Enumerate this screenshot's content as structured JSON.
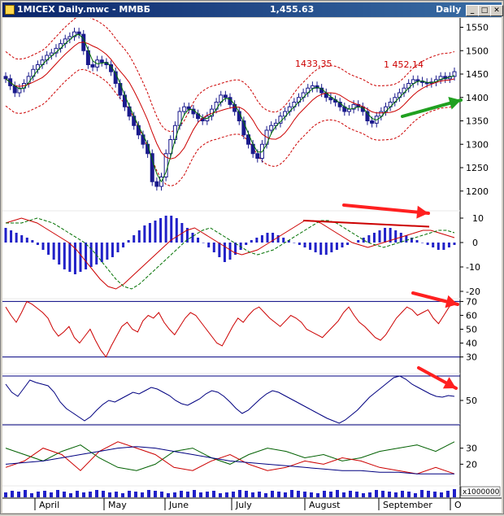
{
  "window": {
    "title": "1MICEX Daily.mwc - ММВБ",
    "last_price": "1,455.63",
    "period": "Daily",
    "controls": {
      "minimize": "_",
      "maximize": "□",
      "close": "✕"
    },
    "icon": "chart-app-icon"
  },
  "colors": {
    "candle": "#1a1a8c",
    "ma": "#cc0000",
    "ma_fast": "#007000",
    "band": "#cc0000",
    "histogram": "#2020c8",
    "rsi": "#cc0000",
    "stoch": "#000080",
    "adx": "#000080",
    "di_plus": "#006000",
    "di_minus": "#cc0000",
    "volume": "#2020c8",
    "arrow_red": "#ff2020",
    "arrow_green": "#20a020"
  },
  "chart_data": {
    "x_labels": [
      "April",
      "May",
      "June",
      "July",
      "August",
      "September",
      "O"
    ],
    "price_panel": {
      "type": "candlestick",
      "yticks": [
        "1550",
        "1500",
        "1450",
        "1400",
        "1350",
        "1300",
        "1250",
        "1200"
      ],
      "ylim": [
        1170,
        1570
      ],
      "annotations": [
        "1433,35",
        "1 452,14"
      ],
      "last_close": 1455.63,
      "close": [
        1440,
        1425,
        1410,
        1420,
        1430,
        1445,
        1460,
        1470,
        1480,
        1490,
        1495,
        1505,
        1515,
        1525,
        1530,
        1540,
        1535,
        1500,
        1470,
        1465,
        1480,
        1475,
        1470,
        1455,
        1430,
        1405,
        1380,
        1360,
        1340,
        1320,
        1300,
        1280,
        1220,
        1210,
        1230,
        1280,
        1310,
        1340,
        1370,
        1380,
        1375,
        1365,
        1355,
        1350,
        1360,
        1375,
        1390,
        1405,
        1400,
        1385,
        1370,
        1350,
        1320,
        1300,
        1280,
        1270,
        1300,
        1330,
        1340,
        1345,
        1360,
        1370,
        1380,
        1390,
        1400,
        1410,
        1420,
        1425,
        1420,
        1410,
        1400,
        1395,
        1390,
        1380,
        1370,
        1375,
        1385,
        1380,
        1370,
        1350,
        1345,
        1360,
        1370,
        1380,
        1390,
        1400,
        1410,
        1420,
        1430,
        1438,
        1435,
        1432,
        1430,
        1433,
        1438,
        1445,
        1440,
        1445,
        1455
      ]
    },
    "macd_panel": {
      "yticks": [
        "10",
        "0",
        "-10",
        "-20"
      ],
      "ylim": [
        -23,
        13
      ],
      "histogram": [
        6,
        5,
        4,
        3,
        2,
        1,
        -1,
        -3,
        -5,
        -7,
        -9,
        -11,
        -12,
        -13,
        -12,
        -11,
        -10,
        -9,
        -8,
        -7,
        -6,
        -4,
        -2,
        1,
        3,
        5,
        7,
        8,
        9,
        10,
        11,
        11,
        10,
        8,
        6,
        4,
        2,
        0,
        -2,
        -4,
        -6,
        -8,
        -7,
        -5,
        -3,
        -1,
        1,
        2,
        3,
        4,
        4,
        3,
        2,
        1,
        0,
        -1,
        -2,
        -3,
        -4,
        -5,
        -5,
        -4,
        -3,
        -2,
        -1,
        0,
        1,
        2,
        3,
        4,
        5,
        6,
        6,
        5,
        4,
        3,
        2,
        1,
        0,
        -1,
        -2,
        -3,
        -3,
        -2,
        -1
      ],
      "signal": [
        8,
        9,
        10,
        9,
        8,
        6,
        4,
        2,
        0,
        -3,
        -7,
        -11,
        -15,
        -18,
        -19,
        -17,
        -14,
        -11,
        -8,
        -5,
        -2,
        1,
        3,
        5,
        6,
        4,
        2,
        0,
        -2,
        -4,
        -5,
        -4,
        -3,
        -1,
        1,
        3,
        5,
        7,
        9,
        9,
        8,
        6,
        4,
        2,
        0,
        -1,
        -2,
        -1,
        0,
        1,
        2,
        3,
        4,
        5,
        5,
        4,
        3,
        2
      ]
    },
    "rsi_panel": {
      "yticks": [
        "70",
        "60",
        "50",
        "40",
        "30"
      ],
      "ylim": [
        28,
        72
      ],
      "levels": [
        70,
        30
      ],
      "values": [
        66,
        60,
        55,
        62,
        70,
        68,
        65,
        62,
        58,
        50,
        45,
        48,
        52,
        44,
        40,
        45,
        50,
        42,
        35,
        30,
        38,
        45,
        52,
        55,
        50,
        48,
        56,
        60,
        58,
        62,
        55,
        50,
        46,
        52,
        58,
        62,
        60,
        55,
        50,
        45,
        40,
        38,
        45,
        52,
        58,
        55,
        60,
        64,
        66,
        62,
        58,
        55,
        52,
        56,
        60,
        58,
        55,
        50,
        48,
        46,
        44,
        48,
        52,
        56,
        62,
        66,
        60,
        55,
        52,
        48,
        44,
        42,
        46,
        52,
        58,
        62,
        66,
        64,
        60,
        62,
        64,
        58,
        54,
        60,
        66,
        70
      ]
    },
    "stoch_panel": {
      "yticks": [
        "50"
      ],
      "ylim": [
        0,
        100
      ],
      "levels": [
        80,
        20
      ],
      "values": [
        70,
        60,
        55,
        65,
        75,
        72,
        70,
        68,
        60,
        48,
        40,
        35,
        30,
        25,
        30,
        38,
        45,
        50,
        48,
        52,
        56,
        60,
        58,
        62,
        66,
        64,
        60,
        56,
        50,
        46,
        44,
        48,
        52,
        58,
        62,
        60,
        55,
        48,
        40,
        34,
        38,
        45,
        52,
        58,
        62,
        60,
        56,
        52,
        48,
        44,
        40,
        36,
        32,
        28,
        25,
        22,
        26,
        32,
        38,
        46,
        54,
        60,
        66,
        72,
        78,
        80,
        76,
        70,
        66,
        62,
        58,
        55,
        54,
        56,
        55
      ]
    },
    "dmi_panel": {
      "yticks": [
        "30",
        "20"
      ],
      "ylim": [
        8,
        42
      ],
      "adx": [
        20,
        21,
        22,
        24,
        26,
        28,
        30,
        31,
        30,
        28,
        26,
        24,
        22,
        21,
        20,
        19,
        18,
        17,
        16,
        16,
        15,
        15,
        14,
        14,
        14
      ],
      "di_plus": [
        30,
        26,
        22,
        28,
        32,
        24,
        18,
        16,
        20,
        28,
        30,
        24,
        20,
        26,
        30,
        28,
        24,
        26,
        22,
        24,
        28,
        30,
        32,
        28,
        34
      ],
      "di_minus": [
        18,
        22,
        30,
        26,
        16,
        28,
        34,
        30,
        26,
        18,
        16,
        22,
        26,
        20,
        16,
        18,
        22,
        20,
        24,
        22,
        18,
        16,
        14,
        18,
        14
      ]
    },
    "volume_panel": {
      "label": "x1000000",
      "values": [
        6,
        8,
        7,
        9,
        5,
        7,
        8,
        6,
        9,
        7,
        5,
        8,
        6,
        7,
        9,
        8,
        6,
        7,
        5,
        8,
        7,
        6,
        9,
        8,
        7,
        5,
        6,
        8,
        7,
        9,
        6,
        7,
        8,
        5,
        6,
        7,
        9,
        8,
        6,
        7,
        5,
        8,
        7,
        6,
        9,
        8,
        7,
        6,
        5,
        8,
        7,
        9,
        6,
        8,
        7,
        5,
        6,
        9,
        8,
        7,
        6,
        8,
        7,
        5,
        9,
        8,
        7,
        6,
        8,
        10
      ]
    }
  }
}
